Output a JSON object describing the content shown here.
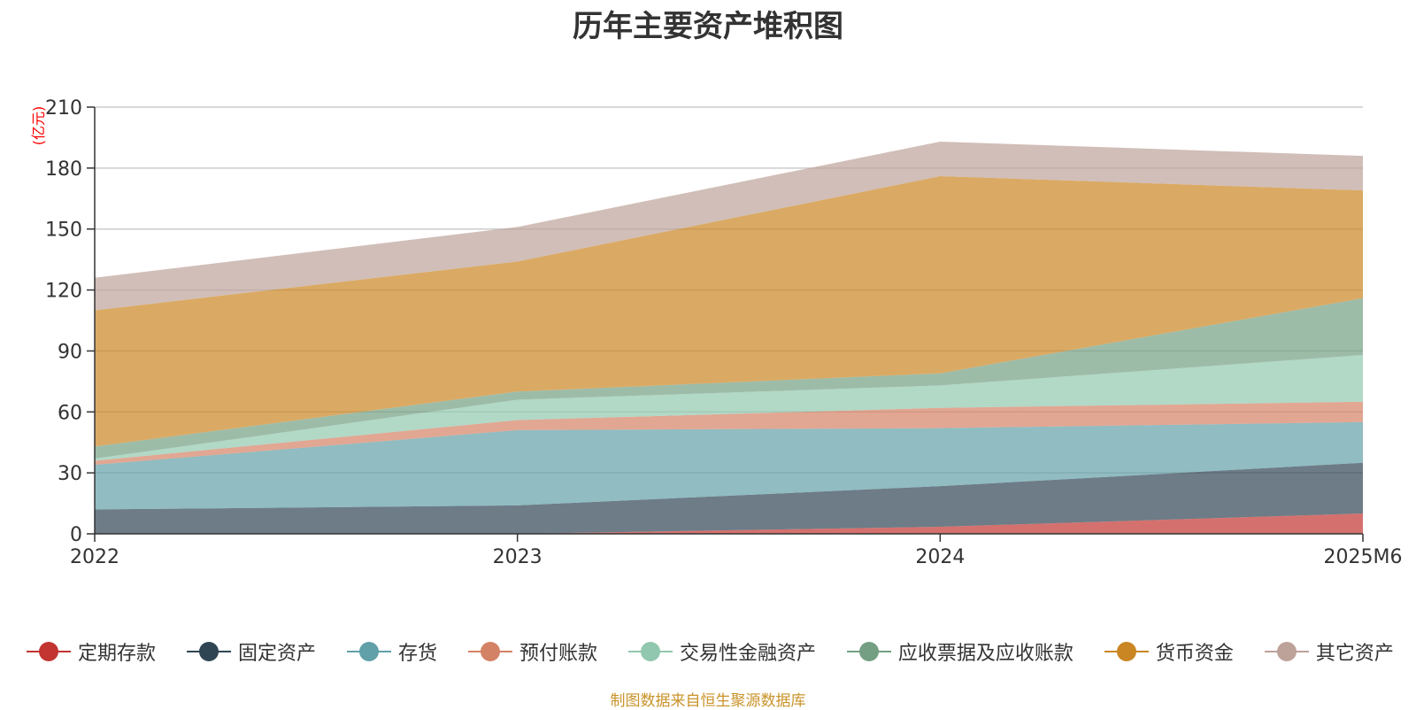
{
  "chart_data": {
    "type": "area",
    "stacked": true,
    "title": "历年主要资产堆积图",
    "unit_label": "(亿元)",
    "categories": [
      "2022",
      "2023",
      "2024",
      "2025M6"
    ],
    "ylim": [
      0,
      210
    ],
    "yticks": [
      0,
      30,
      60,
      90,
      120,
      150,
      180,
      210
    ],
    "grid": true,
    "series": [
      {
        "name": "定期存款",
        "color": "#c23531",
        "values": [
          0,
          0,
          3.5,
          10
        ]
      },
      {
        "name": "固定资产",
        "color": "#2f4554",
        "values": [
          12,
          14,
          20,
          25
        ]
      },
      {
        "name": "存货",
        "color": "#61a0a8",
        "values": [
          22,
          37,
          28.5,
          20
        ]
      },
      {
        "name": "预付账款",
        "color": "#d48265",
        "values": [
          2,
          5,
          10,
          10
        ]
      },
      {
        "name": "交易性金融资产",
        "color": "#91c7ae",
        "values": [
          1,
          10,
          11,
          23
        ]
      },
      {
        "name": "应收票据及应收账款",
        "color": "#749f83",
        "values": [
          6,
          4,
          6,
          28
        ]
      },
      {
        "name": "货币资金",
        "color": "#ca8622",
        "values": [
          67,
          64,
          97,
          53
        ]
      },
      {
        "name": "其它资产",
        "color": "#bda29a",
        "values": [
          16,
          17,
          17,
          17
        ]
      }
    ],
    "legend_position": "bottom"
  },
  "source_note": "制图数据来自恒生聚源数据库"
}
